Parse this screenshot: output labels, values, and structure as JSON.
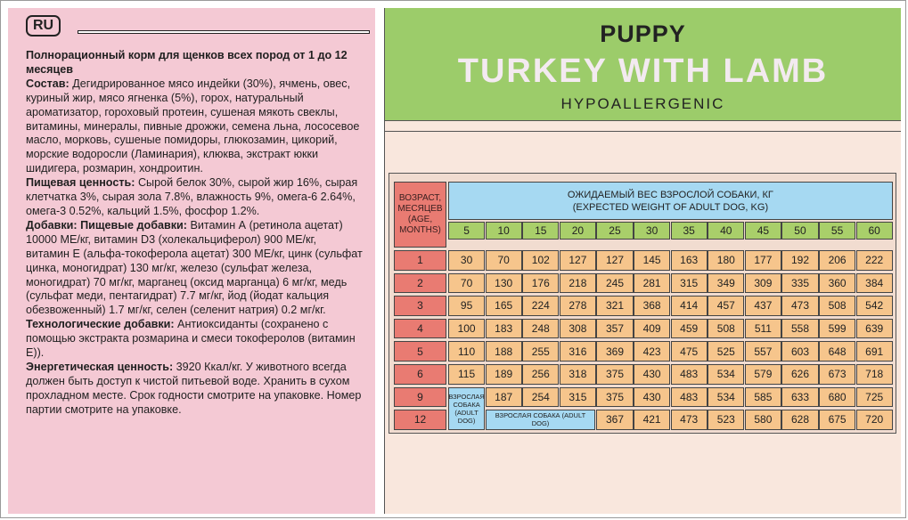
{
  "left_panel": {
    "lang_badge": "RU",
    "description": [
      {
        "label": "Полнорационный корм для щенков всех пород от 1 до 12 месяцев",
        "text": ""
      },
      {
        "label": "Состав:",
        "text": " Дегидрированное мясо индейки (30%), ячмень, овес, куриный жир, мясо ягненка (5%), горох, натуральный ароматизатор, гороховый протеин, сушеная мякоть свеклы, витамины, минералы, пивные дрожжи, семена льна, лососевое масло, морковь, сушеные помидоры, глюкозамин, цикорий, морские водоросли (Ламинария), клюква, экстракт юкки шидигера, розмарин, хондроитин."
      },
      {
        "label": "Пищевая ценность:",
        "text": " Сырой белок 30%, сырой жир 16%, сырая клетчатка 3%, сырая зола 7.8%, влажность 9%, омега-6 2.64%, омега-3 0.52%, кальций 1.5%, фосфор 1.2%."
      },
      {
        "label": "Добавки: Пищевые добавки:",
        "text": " Витамин А (ретинола ацетат) 10000 МЕ/кг, витамин D3 (холекальциферол) 900 МЕ/кг, витамин Е (альфа-токоферола ацетат) 300 МЕ/кг, цинк (сульфат цинка, моногидрат) 130 мг/кг, железо (сульфат железа, моногидрат) 70 мг/кг, марганец (оксид марганца) 6 мг/кг, медь (сульфат меди, пентагидрат) 7.7 мг/кг, йод (йодат кальция обезвоженный) 1.7 мг/кг, селен (селенит натрия) 0.2 мг/кг."
      },
      {
        "label": "Технологические добавки:",
        "text": " Антиоксиданты (сохранено с помощью экстракта розмарина и смеси токоферолов (витамин Е))."
      },
      {
        "label": "Энергетическая ценность:",
        "text": " 3920 Ккал/кг. У животного всегда должен быть доступ к чистой питьевой воде. Хранить в сухом прохладном месте. Срок годности смотрите на упаковке. Номер партии смотрите на упаковке."
      }
    ]
  },
  "header": {
    "line1": "PUPPY",
    "product": "TURKEY WITH LAMB",
    "line3": "HYPOALLERGENIC"
  },
  "table": {
    "age_header": "ВОЗРАСТ, МЕСЯЦЕВ (AGE, MONTHS)",
    "weight_header_ru": "ОЖИДАЕМЫЙ ВЕС ВЗРОСЛОЙ СОБАКИ, КГ",
    "weight_header_en": "(EXPECTED WEIGHT OF ADULT DOG, KG)",
    "weights": [
      "5",
      "10",
      "15",
      "20",
      "25",
      "30",
      "35",
      "40",
      "45",
      "50",
      "55",
      "60"
    ],
    "adult_label_short": "ВЗРОСЛАЯ СОБАКА (ADULT DOG)",
    "adult_label_long": "ВЗРОСЛАЯ СОБАКА (ADULT DOG)",
    "rows": [
      {
        "age": "1",
        "values": [
          "30",
          "70",
          "102",
          "127",
          "127",
          "145",
          "163",
          "180",
          "177",
          "192",
          "206",
          "222"
        ]
      },
      {
        "age": "2",
        "values": [
          "70",
          "130",
          "176",
          "218",
          "245",
          "281",
          "315",
          "349",
          "309",
          "335",
          "360",
          "384"
        ]
      },
      {
        "age": "3",
        "values": [
          "95",
          "165",
          "224",
          "278",
          "321",
          "368",
          "414",
          "457",
          "437",
          "473",
          "508",
          "542"
        ]
      },
      {
        "age": "4",
        "values": [
          "100",
          "183",
          "248",
          "308",
          "357",
          "409",
          "459",
          "508",
          "511",
          "558",
          "599",
          "639"
        ]
      },
      {
        "age": "5",
        "values": [
          "110",
          "188",
          "255",
          "316",
          "369",
          "423",
          "475",
          "525",
          "557",
          "603",
          "648",
          "691"
        ]
      },
      {
        "age": "6",
        "values": [
          "115",
          "189",
          "256",
          "318",
          "375",
          "430",
          "483",
          "534",
          "579",
          "626",
          "673",
          "718"
        ]
      },
      {
        "age": "9",
        "values": [
          "",
          "187",
          "254",
          "315",
          "375",
          "430",
          "483",
          "534",
          "585",
          "633",
          "680",
          "725"
        ]
      },
      {
        "age": "12",
        "values": [
          "",
          "",
          "",
          "",
          "367",
          "421",
          "473",
          "523",
          "580",
          "628",
          "675",
          "720"
        ]
      }
    ]
  },
  "colors": {
    "pink_panel": "#f4c9d4",
    "green_header": "#9ccc6a",
    "age_red": "#e97b72",
    "value_orange": "#f6c58c",
    "kg_green": "#a9cf6a",
    "blue_header": "#a6d9f2"
  }
}
